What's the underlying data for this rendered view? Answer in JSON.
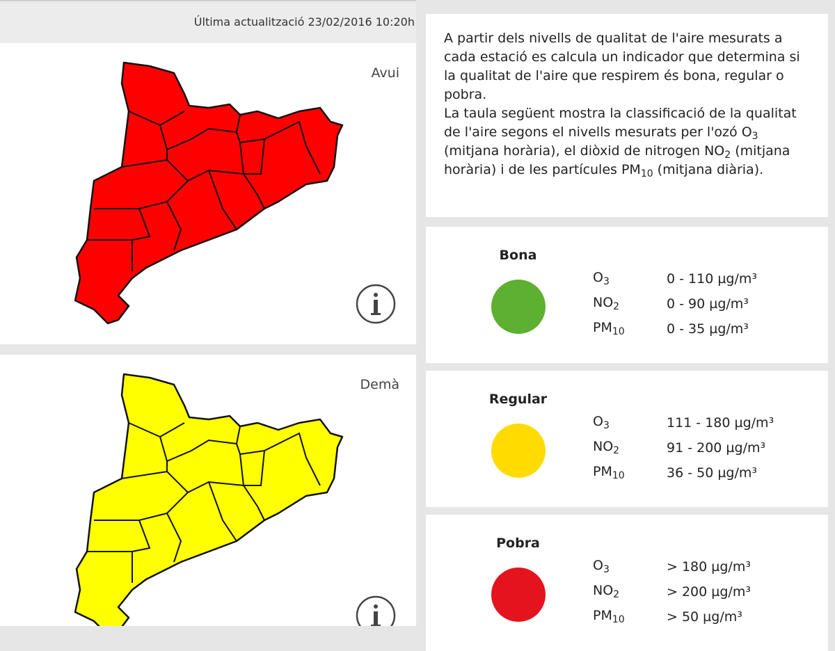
{
  "header": {
    "updated": "Última actualització 23/02/2016  10:20h"
  },
  "maps": [
    {
      "label": "Avui",
      "color": "#ff0000"
    },
    {
      "label": "Demà",
      "color": "#ffff00"
    }
  ],
  "info": {
    "paragraphs": [
      [
        "A partir dels nivells de qualitat de l'aire mesurats a cada estació es calcula un indicador que determina si la qualitat de l'aire que respirem és bona, regular o pobra."
      ],
      [
        "La taula següent mostra la classificació de la qualitat de l'aire segons el nivells mesurats per l'ozó O",
        "3",
        " (mitjana horària), el diòxid de nitrogen NO",
        "2",
        " (mitjana horària) i de les partícules PM",
        "10",
        " (mitjana diària)."
      ]
    ]
  },
  "pollutants": [
    {
      "name": "O",
      "sub": "3"
    },
    {
      "name": "NO",
      "sub": "2"
    },
    {
      "name": "PM",
      "sub": "10"
    }
  ],
  "levels": [
    {
      "name": "Bona",
      "color": "#5db030",
      "ranges": [
        "0 - 110 µg/m³",
        "0 - 90 µg/m³",
        "0 - 35 µg/m³"
      ]
    },
    {
      "name": "Regular",
      "color": "#ffdb00",
      "ranges": [
        "111 - 180 µg/m³",
        "91 - 200 µg/m³",
        "36 - 50 µg/m³"
      ]
    },
    {
      "name": "Pobra",
      "color": "#e3141e",
      "ranges": [
        "> 180 µg/m³",
        "> 200 µg/m³",
        "> 50 µg/m³"
      ]
    }
  ]
}
